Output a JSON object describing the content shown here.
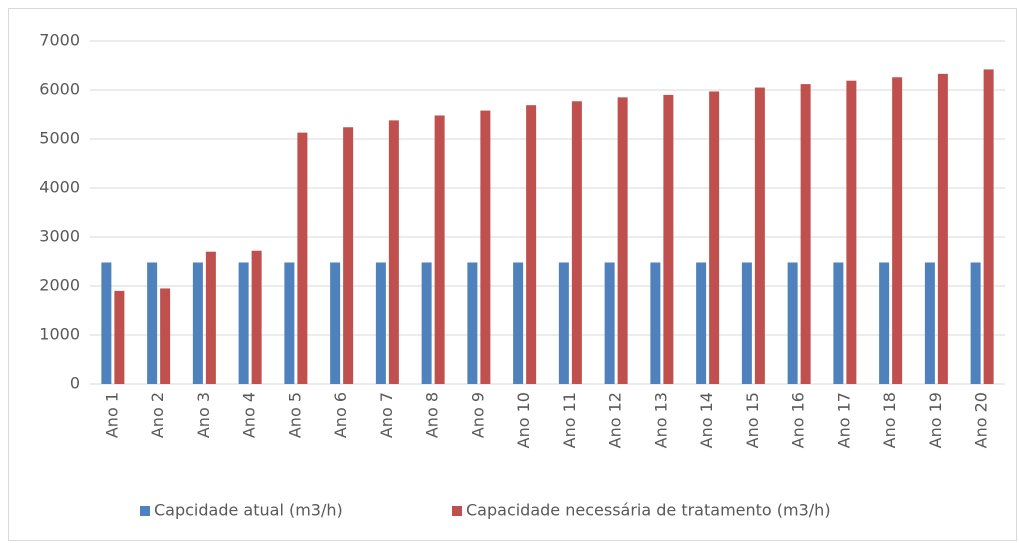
{
  "chart_data": {
    "type": "bar",
    "categories": [
      "Ano 1",
      "Ano 2",
      "Ano 3",
      "Ano 4",
      "Ano 5",
      "Ano 6",
      "Ano 7",
      "Ano 8",
      "Ano 9",
      "Ano 10",
      "Ano 11",
      "Ano 12",
      "Ano 13",
      "Ano 14",
      "Ano 15",
      "Ano 16",
      "Ano 17",
      "Ano 18",
      "Ano 19",
      "Ano 20"
    ],
    "series": [
      {
        "name": "Capcidade atual (m3/h)",
        "color": "#4f81bd",
        "values": [
          2480,
          2480,
          2480,
          2480,
          2480,
          2480,
          2480,
          2480,
          2480,
          2480,
          2480,
          2480,
          2480,
          2480,
          2480,
          2480,
          2480,
          2480,
          2480,
          2480
        ]
      },
      {
        "name": "Capacidade necessária de tratamento (m3/h)",
        "color": "#c0504d",
        "values": [
          1900,
          1950,
          2700,
          2720,
          5130,
          5240,
          5380,
          5480,
          5580,
          5690,
          5770,
          5850,
          5900,
          5970,
          6050,
          6120,
          6190,
          6260,
          6330,
          6420
        ]
      }
    ],
    "ylim": [
      0,
      7000
    ],
    "yticks": [
      0,
      1000,
      2000,
      3000,
      4000,
      5000,
      6000,
      7000
    ],
    "grid": true,
    "legend": "bottom"
  }
}
